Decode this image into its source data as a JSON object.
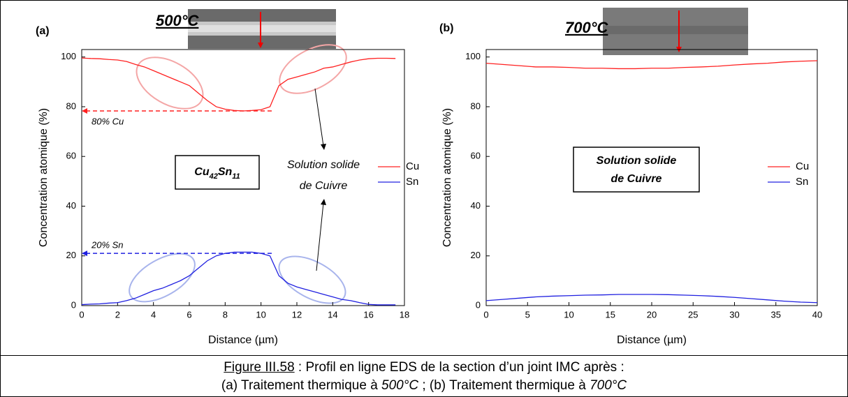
{
  "chart_data": [
    {
      "type": "line",
      "panel_label": "(a)",
      "title": "500°C",
      "x_label": "Distance (µm)",
      "y_label": "Concentration atomique (%)",
      "x": [
        0,
        0.5,
        1,
        1.5,
        2,
        2.5,
        3,
        3.5,
        4,
        4.5,
        5,
        5.5,
        6,
        6.5,
        7,
        7.5,
        8,
        8.5,
        9,
        9.5,
        10,
        10.5,
        11,
        11.5,
        12,
        12.5,
        13,
        13.5,
        14,
        14.5,
        15,
        15.5,
        16,
        16.5,
        17,
        17.5
      ],
      "series": [
        {
          "name": "Cu",
          "color": "#ff2020",
          "values": [
            99.6,
            99.4,
            99.3,
            99.0,
            98.8,
            98.2,
            97.0,
            96.0,
            94.5,
            93.0,
            91.5,
            90.0,
            88.5,
            85.5,
            82.5,
            80.0,
            79.0,
            78.5,
            78.3,
            78.5,
            78.8,
            80.0,
            88.5,
            91.0,
            92.0,
            93.0,
            94.0,
            95.5,
            96.0,
            97.0,
            98.0,
            98.8,
            99.3,
            99.5,
            99.5,
            99.4
          ]
        },
        {
          "name": "Sn",
          "color": "#2020e0",
          "values": [
            0.4,
            0.6,
            0.7,
            1.0,
            1.2,
            2.0,
            3.0,
            4.5,
            6.0,
            7.0,
            8.5,
            10.0,
            12.0,
            15.0,
            18.0,
            20.0,
            21.0,
            21.5,
            21.5,
            21.5,
            21.0,
            20.0,
            12.0,
            9.0,
            7.5,
            6.5,
            5.5,
            4.5,
            3.5,
            2.5,
            2.0,
            1.2,
            0.5,
            0.3,
            0.3,
            0.3
          ]
        }
      ],
      "xlim": [
        0,
        18
      ],
      "ylim": [
        0,
        103
      ],
      "xticks": [
        0,
        2,
        4,
        6,
        8,
        10,
        12,
        14,
        16,
        18
      ],
      "yticks": [
        0,
        20,
        40,
        60,
        80,
        100
      ],
      "reference_lines": [
        {
          "y": 78.3,
          "x": [
            0,
            10.7
          ],
          "color": "#ff2020"
        },
        {
          "y": 21,
          "x": [
            0,
            10.7
          ],
          "color": "#2020e0"
        }
      ],
      "annotations": [
        "80% Cu",
        "20% Sn",
        "Solution solide",
        "de Cuivre"
      ],
      "box_label": [
        "Cu",
        "42",
        "Sn",
        "11"
      ]
    },
    {
      "type": "line",
      "panel_label": "(b)",
      "title": "700°C",
      "x_label": "Distance (µm)",
      "y_label": "Concentration atomique (%)",
      "x": [
        0,
        2,
        4,
        6,
        8,
        10,
        12,
        14,
        16,
        18,
        20,
        22,
        24,
        26,
        28,
        30,
        32,
        34,
        36,
        38,
        40
      ],
      "series": [
        {
          "name": "Cu",
          "color": "#ff2020",
          "values": [
            97.5,
            97.0,
            96.5,
            96.0,
            96.0,
            95.8,
            95.5,
            95.5,
            95.3,
            95.3,
            95.5,
            95.5,
            95.8,
            96.0,
            96.3,
            96.8,
            97.2,
            97.5,
            98.0,
            98.3,
            98.5
          ]
        },
        {
          "name": "Sn",
          "color": "#2020e0",
          "values": [
            2.0,
            2.5,
            3.0,
            3.5,
            3.8,
            4.0,
            4.2,
            4.3,
            4.5,
            4.5,
            4.5,
            4.4,
            4.2,
            4.0,
            3.7,
            3.3,
            2.8,
            2.3,
            1.8,
            1.4,
            1.2
          ]
        }
      ],
      "xlim": [
        0,
        40
      ],
      "ylim": [
        0,
        103
      ],
      "xticks": [
        0,
        5,
        10,
        15,
        20,
        25,
        30,
        35,
        40
      ],
      "yticks": [
        0,
        20,
        40,
        60,
        80,
        100
      ],
      "box_label": [
        "Solution solide",
        "de Cuivre"
      ]
    }
  ],
  "caption": {
    "figure": "Figure III.58",
    "line1": " : Profil en ligne EDS de la section d’un joint IMC après :",
    "line2_parts": [
      "(a) Traitement thermique à ",
      "500°C",
      " ; (b) Traitement thermique à ",
      "700°C"
    ]
  }
}
